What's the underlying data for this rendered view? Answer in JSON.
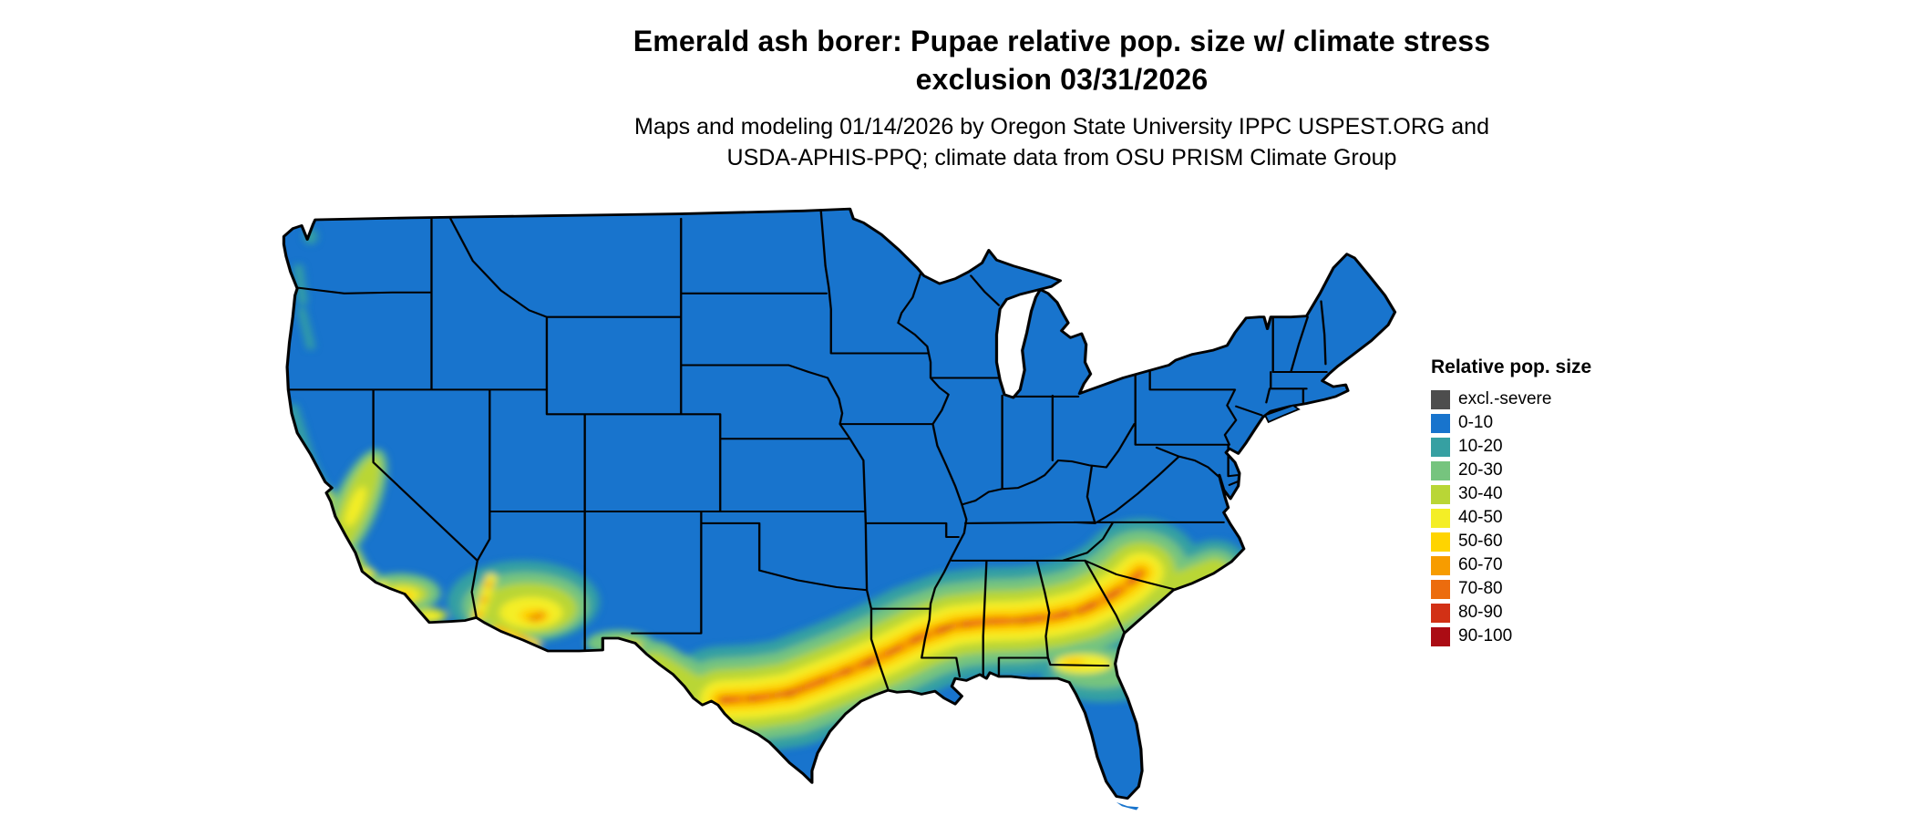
{
  "title": {
    "line1": "Emerald ash borer: Pupae relative pop. size w/ climate stress",
    "line2": "exclusion 03/31/2026"
  },
  "subtitle": {
    "line1": "Maps and modeling 01/14/2026 by Oregon State University IPPC USPEST.ORG and",
    "line2": "USDA-APHIS-PPQ; climate data from OSU PRISM Climate Group"
  },
  "legend": {
    "title": "Relative pop. size",
    "items": [
      {
        "label": "excl.-severe",
        "key": "excl"
      },
      {
        "label": "0-10",
        "key": "b0"
      },
      {
        "label": "10-20",
        "key": "b10"
      },
      {
        "label": "20-30",
        "key": "b20"
      },
      {
        "label": "30-40",
        "key": "b30"
      },
      {
        "label": "40-50",
        "key": "b40"
      },
      {
        "label": "50-60",
        "key": "b50"
      },
      {
        "label": "60-70",
        "key": "b60"
      },
      {
        "label": "70-80",
        "key": "b70"
      },
      {
        "label": "80-90",
        "key": "b80"
      },
      {
        "label": "90-100",
        "key": "b90"
      }
    ]
  },
  "map": {
    "region": "Contiguous United States",
    "background_color": "#ffffff",
    "border_color": "#000000",
    "palette": {
      "excl": "#4d4d4d",
      "b0": "#1874cd",
      "b10": "#36a0a2",
      "b20": "#76c47e",
      "b30": "#b9d636",
      "b40": "#f4ee26",
      "b50": "#ffd400",
      "b60": "#f79c00",
      "b70": "#ec6c0e",
      "b80": "#d23115",
      "b90": "#ab0c14",
      "base": "0-10 blue covers most of the country"
    },
    "pattern_summary": "Elevated relative population band (20-80) arcs across the southern U.S. from central Texas through Louisiana, Mississippi, Alabama, Georgia into South Carolina; additional elevated areas in southern Arizona, southern New Mexico and coastal/central California; far southern Florida and south Texas tip remain 0-10."
  }
}
